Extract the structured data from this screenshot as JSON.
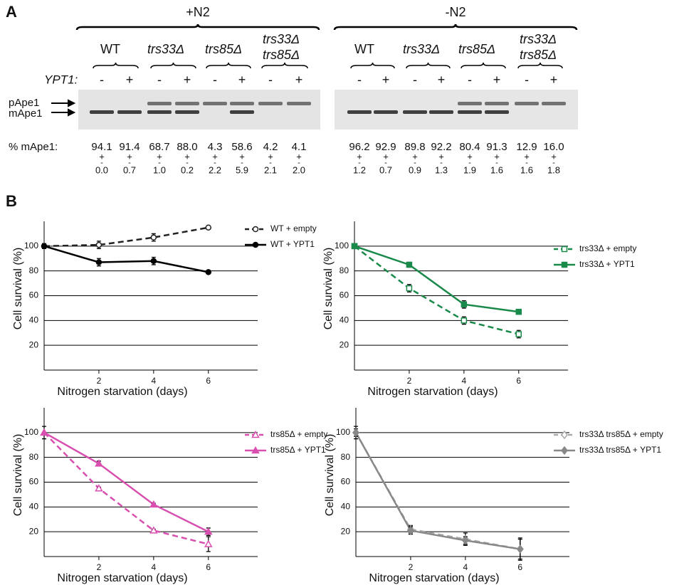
{
  "panel_a": {
    "label": "A",
    "ypt1_label": "YPT1:",
    "band_labels": [
      "pApe1",
      "mApe1"
    ],
    "quant_label": "% mApe1:",
    "pm_sign": [
      "+",
      "-"
    ],
    "conditions": [
      {
        "name": "+N2",
        "genotypes": [
          [
            "WT"
          ],
          [
            "trs33Δ"
          ],
          [
            "trs85Δ"
          ],
          [
            "trs33Δ",
            "trs85Δ"
          ]
        ],
        "lanes": [
          {
            "ypt1": "-",
            "mape1": "94.1",
            "err": "0.0"
          },
          {
            "ypt1": "+",
            "mape1": "91.4",
            "err": "0.7"
          },
          {
            "ypt1": "-",
            "mape1": "68.7",
            "err": "1.0"
          },
          {
            "ypt1": "+",
            "mape1": "88.0",
            "err": "0.2"
          },
          {
            "ypt1": "-",
            "mape1": "4.3",
            "err": "2.2"
          },
          {
            "ypt1": "+",
            "mape1": "58.6",
            "err": "5.9"
          },
          {
            "ypt1": "-",
            "mape1": "4.2",
            "err": "2.1"
          },
          {
            "ypt1": "+",
            "mape1": "4.1",
            "err": "2.0"
          }
        ]
      },
      {
        "name": "-N2",
        "genotypes": [
          [
            "WT"
          ],
          [
            "trs33Δ"
          ],
          [
            "trs85Δ"
          ],
          [
            "trs33Δ",
            "trs85Δ"
          ]
        ],
        "lanes": [
          {
            "ypt1": "-",
            "mape1": "96.2",
            "err": "1.2"
          },
          {
            "ypt1": "+",
            "mape1": "92.9",
            "err": "0.7"
          },
          {
            "ypt1": "-",
            "mape1": "89.8",
            "err": "0.9"
          },
          {
            "ypt1": "+",
            "mape1": "92.2",
            "err": "1.3"
          },
          {
            "ypt1": "-",
            "mape1": "80.4",
            "err": "1.9"
          },
          {
            "ypt1": "+",
            "mape1": "91.3",
            "err": "1.6"
          },
          {
            "ypt1": "-",
            "mape1": "12.9",
            "err": "1.6"
          },
          {
            "ypt1": "+",
            "mape1": "16.0",
            "err": "1.8"
          }
        ]
      }
    ]
  },
  "panel_b": {
    "label": "B"
  },
  "chart_data": [
    {
      "type": "line",
      "ylabel": "Cell survival (%)",
      "xlabel": "Nitrogen starvation (days)",
      "x": [
        0,
        2,
        4,
        6
      ],
      "xlim": [
        0,
        7.8
      ],
      "xticks": [
        2,
        4,
        6
      ],
      "ylim": [
        0,
        120
      ],
      "yticks": [
        20,
        40,
        60,
        80,
        100
      ],
      "grid": true,
      "series": [
        {
          "name": "WT + empty",
          "color": "#222222",
          "dashed": true,
          "marker": "circle",
          "filled": false,
          "values": [
            100,
            101,
            107,
            115
          ],
          "errors": [
            2,
            3,
            3,
            1
          ]
        },
        {
          "name": "WT + YPT1",
          "color": "#000000",
          "dashed": false,
          "marker": "circle",
          "filled": true,
          "values": [
            100,
            87,
            88,
            79
          ],
          "errors": [
            2,
            3,
            3,
            1
          ]
        }
      ]
    },
    {
      "type": "line",
      "ylabel": "Cell survival (%)",
      "xlabel": "Nitrogen starvation (days)",
      "x": [
        0,
        2,
        4,
        6
      ],
      "xlim": [
        0,
        7.8
      ],
      "xticks": [
        2,
        4,
        6
      ],
      "ylim": [
        0,
        120
      ],
      "yticks": [
        20,
        40,
        60,
        80,
        100
      ],
      "grid": true,
      "series": [
        {
          "name": "trs33Δ + empty",
          "color": "#1a8a4a",
          "dashed": true,
          "marker": "square",
          "filled": false,
          "values": [
            100,
            66,
            40,
            29
          ],
          "errors": [
            2,
            3,
            3,
            3
          ]
        },
        {
          "name": "trs33Δ + YPT1",
          "color": "#1a8a4a",
          "dashed": false,
          "marker": "square",
          "filled": true,
          "values": [
            100,
            85,
            53,
            47
          ],
          "errors": [
            1,
            2,
            3,
            1
          ]
        }
      ]
    },
    {
      "type": "line",
      "ylabel": "Cell survival (%)",
      "xlabel": "Nitrogen starvation (days)",
      "x": [
        0,
        2,
        4,
        6
      ],
      "xlim": [
        0,
        7.8
      ],
      "xticks": [
        2,
        4,
        6
      ],
      "ylim": [
        0,
        120
      ],
      "yticks": [
        20,
        40,
        60,
        80,
        100
      ],
      "grid": true,
      "series": [
        {
          "name": "trs85Δ + empty",
          "color": "#d94fb0",
          "dashed": true,
          "marker": "triangle",
          "filled": false,
          "values": [
            100,
            55,
            21,
            10
          ],
          "errors": [
            0,
            1,
            1,
            6
          ]
        },
        {
          "name": "trs85Δ + YPT1",
          "color": "#d94fb0",
          "dashed": false,
          "marker": "triangle",
          "filled": true,
          "values": [
            100,
            75,
            42,
            20
          ],
          "errors": [
            5,
            2,
            1,
            3
          ]
        }
      ]
    },
    {
      "type": "line",
      "ylabel": "Cell survival (%)",
      "xlabel": "Nitrogen starvation (days)",
      "x": [
        0,
        2,
        4,
        6
      ],
      "xlim": [
        0,
        7.8
      ],
      "xticks": [
        2,
        4,
        6
      ],
      "ylim": [
        0,
        120
      ],
      "yticks": [
        20,
        40,
        60,
        80,
        100
      ],
      "grid": true,
      "series": [
        {
          "name": "trs33Δ trs85Δ + empty",
          "color": "#aaaaaa",
          "dashed": true,
          "marker": "diamond",
          "filled": false,
          "values": [
            100,
            22,
            14,
            6
          ],
          "errors": [
            5,
            3,
            5,
            9
          ]
        },
        {
          "name": "trs33Δ trs85Δ + YPT1",
          "color": "#888888",
          "dashed": false,
          "marker": "diamond",
          "filled": true,
          "values": [
            100,
            21,
            13,
            6
          ],
          "errors": [
            3,
            3,
            3,
            8
          ]
        }
      ]
    }
  ]
}
